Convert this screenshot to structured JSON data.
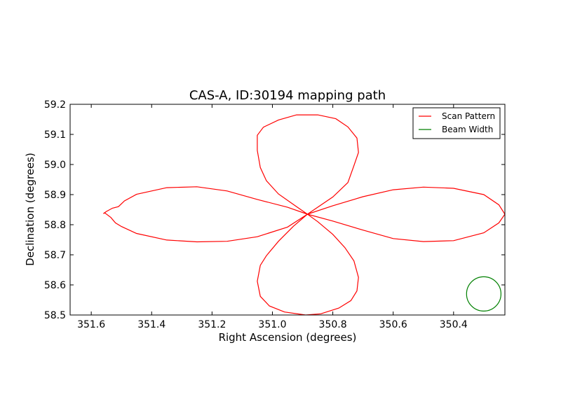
{
  "chart_data": {
    "type": "line",
    "title": "CAS-A, ID:30194 mapping path",
    "xlabel": "Right Ascension (degrees)",
    "ylabel": "Declination (degrees)",
    "xlim": [
      351.67,
      350.23
    ],
    "ylim": [
      58.5,
      59.2
    ],
    "x_ticks": [
      351.6,
      351.4,
      351.2,
      351.0,
      350.8,
      350.6,
      350.4
    ],
    "x_tick_labels": [
      "351.6",
      "351.4",
      "351.2",
      "351.0",
      "350.8",
      "350.6",
      "350.4"
    ],
    "y_ticks": [
      58.5,
      58.6,
      58.7,
      58.8,
      58.9,
      59.0,
      59.1,
      59.2
    ],
    "y_tick_labels": [
      "58.5",
      "58.6",
      "58.7",
      "58.8",
      "58.9",
      "59.0",
      "59.1",
      "59.2"
    ],
    "grid": false,
    "legend_position": "top-right",
    "series": [
      {
        "name": "Scan Pattern",
        "color": "#ff0000",
        "points": [
          [
            350.884,
            58.835
          ],
          [
            350.95,
            58.858
          ],
          [
            351.05,
            58.884
          ],
          [
            351.15,
            58.912
          ],
          [
            351.25,
            58.926
          ],
          [
            351.35,
            58.923
          ],
          [
            351.45,
            58.901
          ],
          [
            351.49,
            58.879
          ],
          [
            351.51,
            58.86
          ],
          [
            351.53,
            58.855
          ],
          [
            351.55,
            58.844
          ],
          [
            351.56,
            58.837
          ],
          [
            351.555,
            58.839
          ],
          [
            351.535,
            58.824
          ],
          [
            351.52,
            58.806
          ],
          [
            351.5,
            58.794
          ],
          [
            351.45,
            58.771
          ],
          [
            351.35,
            58.749
          ],
          [
            351.25,
            58.743
          ],
          [
            351.15,
            58.745
          ],
          [
            351.05,
            58.76
          ],
          [
            350.95,
            58.792
          ],
          [
            350.884,
            58.835
          ],
          [
            350.92,
            58.86
          ],
          [
            350.98,
            58.902
          ],
          [
            351.02,
            58.946
          ],
          [
            351.04,
            58.99
          ],
          [
            351.05,
            59.047
          ],
          [
            351.05,
            59.097
          ],
          [
            351.03,
            59.124
          ],
          [
            350.98,
            59.148
          ],
          [
            350.92,
            59.165
          ],
          [
            350.85,
            59.165
          ],
          [
            350.79,
            59.152
          ],
          [
            350.75,
            59.125
          ],
          [
            350.72,
            59.088
          ],
          [
            350.715,
            59.04
          ],
          [
            350.73,
            58.996
          ],
          [
            350.75,
            58.94
          ],
          [
            350.8,
            58.892
          ],
          [
            350.884,
            58.835
          ],
          [
            350.8,
            58.812
          ],
          [
            350.7,
            58.782
          ],
          [
            350.6,
            58.754
          ],
          [
            350.5,
            58.744
          ],
          [
            350.4,
            58.747
          ],
          [
            350.3,
            58.773
          ],
          [
            350.25,
            58.806
          ],
          [
            350.23,
            58.835
          ],
          [
            350.25,
            58.866
          ],
          [
            350.3,
            58.9
          ],
          [
            350.4,
            58.921
          ],
          [
            350.5,
            58.925
          ],
          [
            350.6,
            58.916
          ],
          [
            350.7,
            58.893
          ],
          [
            350.8,
            58.863
          ],
          [
            350.884,
            58.835
          ],
          [
            350.85,
            58.81
          ],
          [
            350.8,
            58.768
          ],
          [
            350.76,
            58.724
          ],
          [
            350.73,
            58.68
          ],
          [
            350.715,
            58.625
          ],
          [
            350.72,
            58.58
          ],
          [
            350.74,
            58.548
          ],
          [
            350.78,
            58.523
          ],
          [
            350.84,
            58.504
          ],
          [
            350.89,
            58.5
          ],
          [
            350.96,
            58.51
          ],
          [
            351.01,
            58.53
          ],
          [
            351.04,
            58.562
          ],
          [
            351.05,
            58.612
          ],
          [
            351.04,
            58.665
          ],
          [
            351.02,
            58.697
          ],
          [
            350.98,
            58.745
          ],
          [
            350.93,
            58.795
          ],
          [
            350.884,
            58.835
          ]
        ]
      },
      {
        "name": "Beam Width",
        "color": "#008000",
        "shape": "circle",
        "center": [
          350.3,
          58.57
        ],
        "radius_x": 0.057,
        "radius_y": 0.057
      }
    ]
  }
}
